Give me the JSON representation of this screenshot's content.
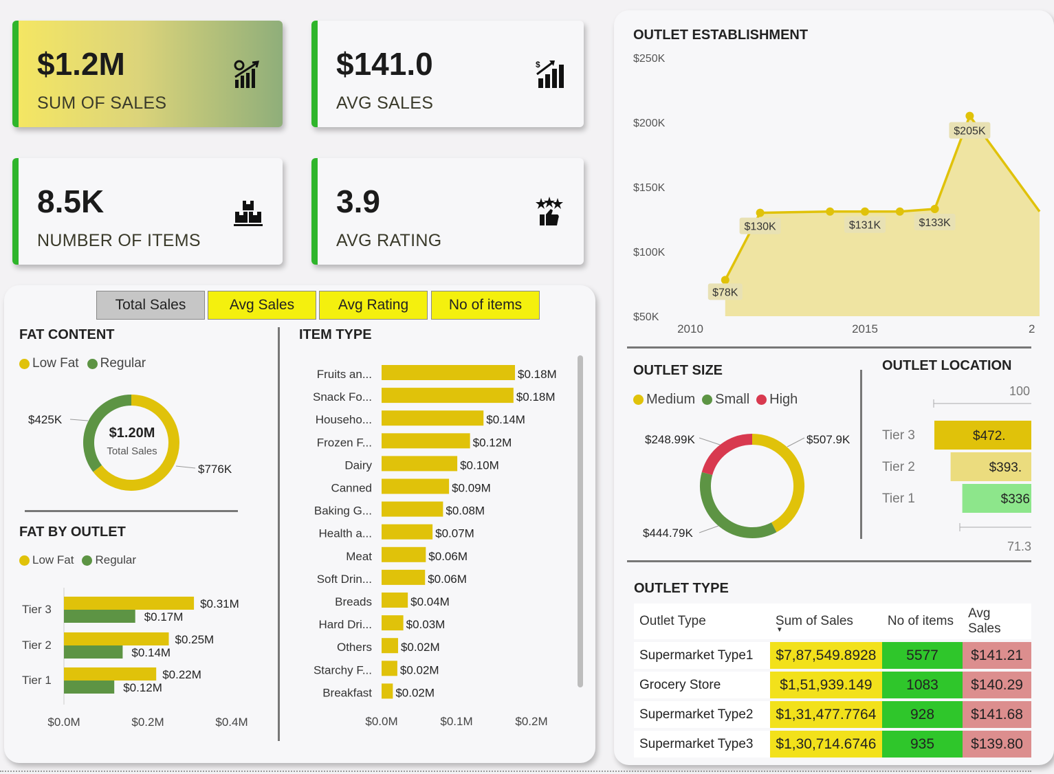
{
  "kpis": {
    "sales": {
      "value": "$1.2M",
      "label": "SUM OF SALES",
      "icon": "sales-chart-icon"
    },
    "avg_sales": {
      "value": "$141.0",
      "label": "AVG SALES",
      "icon": "growth-bars-icon"
    },
    "items": {
      "value": "8.5K",
      "label": "NUMBER OF ITEMS",
      "icon": "boxes-icon"
    },
    "rating": {
      "value": "3.9",
      "label": "AVG RATING",
      "icon": "stars-thumbs-up-icon"
    }
  },
  "tabs": [
    "Total Sales",
    "Avg Sales",
    "Avg Rating",
    "No of items"
  ],
  "colors": {
    "yellow": "#e0c20a",
    "green": "#5d9444",
    "red": "#d8394f",
    "light_yellow": "#ebdc7e",
    "light_green": "#8de68b",
    "tab_active": "#c6c6c6",
    "tab_inactive": "#f4f00e",
    "kpi_border": "#2fb52b"
  },
  "fat_content": {
    "title": "FAT CONTENT",
    "legend": [
      "Low Fat",
      "Regular"
    ],
    "center_value": "$1.20M",
    "center_label": "Total Sales"
  },
  "fat_by_outlet": {
    "title": "FAT BY OUTLET",
    "legend": [
      "Low Fat",
      "Regular"
    ]
  },
  "item_type": {
    "title": "ITEM TYPE"
  },
  "outlet_establishment": {
    "title": "OUTLET ESTABLISHMENT"
  },
  "outlet_size": {
    "title": "OUTLET SIZE",
    "legend": [
      "Medium",
      "Small",
      "High"
    ]
  },
  "outlet_location": {
    "title": "OUTLET LOCATION",
    "top_tick": "100",
    "bottom_tick": "71.3"
  },
  "outlet_type": {
    "title": "OUTLET TYPE",
    "headers": [
      "Outlet Type",
      "Sum of Sales",
      "No of items",
      "Avg Sales"
    ],
    "rows": [
      [
        "Supermarket Type1",
        "$7,87,549.8928",
        "5577",
        "$141.21"
      ],
      [
        "Grocery Store",
        "$1,51,939.149",
        "1083",
        "$140.29"
      ],
      [
        "Supermarket Type2",
        "$1,31,477.7764",
        "928",
        "$141.68"
      ],
      [
        "Supermarket Type3",
        "$1,30,714.6746",
        "935",
        "$139.80"
      ]
    ]
  },
  "chart_data": [
    {
      "id": "fat_content",
      "type": "pie",
      "labels": [
        "Low Fat",
        "Regular"
      ],
      "values": [
        776,
        425
      ],
      "data_labels": [
        "$776K",
        "$425K"
      ]
    },
    {
      "id": "fat_by_outlet",
      "type": "bar",
      "orientation": "horizontal",
      "categories": [
        "Tier 3",
        "Tier 2",
        "Tier 1"
      ],
      "series": [
        {
          "name": "Low Fat",
          "values": [
            0.31,
            0.25,
            0.22
          ],
          "labels": [
            "$0.31M",
            "$0.25M",
            "$0.22M"
          ]
        },
        {
          "name": "Regular",
          "values": [
            0.17,
            0.14,
            0.12
          ],
          "labels": [
            "$0.17M",
            "$0.14M",
            "$0.12M"
          ]
        }
      ],
      "xticks": [
        "$0.0M",
        "$0.2M",
        "$0.4M"
      ],
      "xlim": [
        0,
        0.4
      ]
    },
    {
      "id": "item_type",
      "type": "bar",
      "orientation": "horizontal",
      "categories": [
        "Fruits an...",
        "Snack Fo...",
        "Househo...",
        "Frozen F...",
        "Dairy",
        "Canned",
        "Baking G...",
        "Health a...",
        "Meat",
        "Soft Drin...",
        "Breads",
        "Hard Dri...",
        "Others",
        "Starchy F...",
        "Breakfast"
      ],
      "values": [
        0.178,
        0.176,
        0.136,
        0.118,
        0.101,
        0.09,
        0.082,
        0.068,
        0.059,
        0.058,
        0.035,
        0.029,
        0.022,
        0.021,
        0.015
      ],
      "labels": [
        "$0.18M",
        "$0.18M",
        "$0.14M",
        "$0.12M",
        "$0.10M",
        "$0.09M",
        "$0.08M",
        "$0.07M",
        "$0.06M",
        "$0.06M",
        "$0.04M",
        "$0.03M",
        "$0.02M",
        "$0.02M",
        "$0.02M"
      ],
      "xticks": [
        "$0.0M",
        "$0.1M",
        "$0.2M"
      ],
      "xlim": [
        0,
        0.2
      ]
    },
    {
      "id": "outlet_establishment",
      "type": "area",
      "x": [
        2011,
        2012,
        2014,
        2015,
        2016,
        2017,
        2018,
        2020
      ],
      "y": [
        78,
        130,
        131,
        131,
        131,
        133,
        205,
        131
      ],
      "point_labels": [
        "$78K",
        "$130K",
        "",
        "$131K",
        "",
        "$133K",
        "$205K",
        "$"
      ],
      "yticks": [
        "$250K",
        "$200K",
        "$150K",
        "$100K",
        "$50K"
      ],
      "xticks": [
        "2010",
        "2015",
        "2"
      ],
      "ylim": [
        50,
        250
      ]
    },
    {
      "id": "outlet_size",
      "type": "pie",
      "labels": [
        "Medium",
        "Small",
        "High"
      ],
      "values": [
        507.9,
        444.79,
        248.99
      ],
      "data_labels": [
        "$507.9K",
        "$444.79K",
        "$248.99K"
      ]
    },
    {
      "id": "outlet_location",
      "type": "bar",
      "orientation": "horizontal",
      "categories": [
        "Tier 3",
        "Tier 2",
        "Tier 1"
      ],
      "values": [
        472,
        393,
        336
      ],
      "labels": [
        "$472.",
        "$393.",
        "$336"
      ]
    }
  ]
}
